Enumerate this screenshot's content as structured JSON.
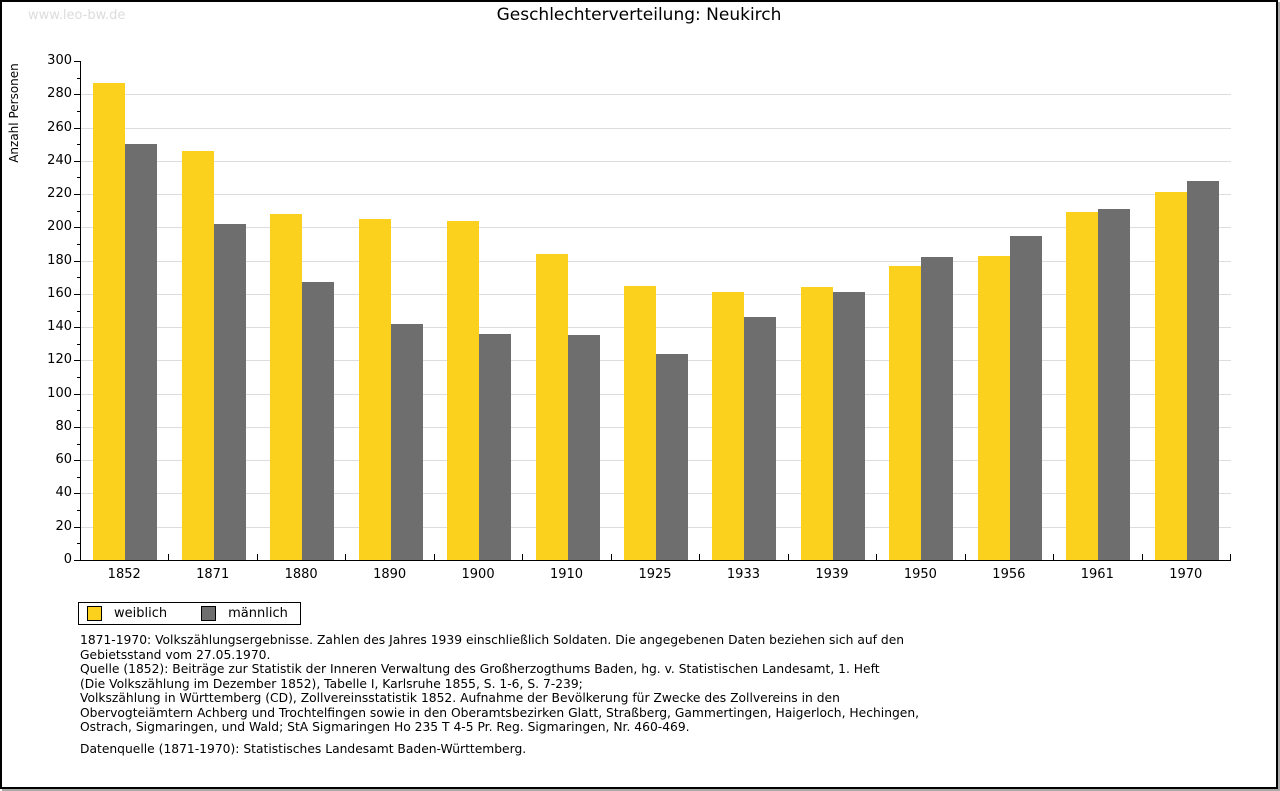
{
  "watermark": "www.leo-bw.de",
  "title": "Geschlechterverteilung: Neukirch",
  "chart_data": {
    "type": "bar",
    "title": "Geschlechterverteilung: Neukirch",
    "xlabel": "",
    "ylabel": "Anzahl Personen",
    "ylim": [
      0,
      300
    ],
    "y_major_step": 20,
    "y_minor_step": 10,
    "grid": true,
    "legend_position": "bottom-left",
    "categories": [
      "1852",
      "1871",
      "1880",
      "1890",
      "1900",
      "1910",
      "1925",
      "1933",
      "1939",
      "1950",
      "1956",
      "1961",
      "1970"
    ],
    "series": [
      {
        "name": "weiblich",
        "color": "#fcd11e",
        "values": [
          287,
          246,
          208,
          205,
          204,
          184,
          165,
          161,
          164,
          177,
          183,
          209,
          221
        ]
      },
      {
        "name": "männlich",
        "color": "#6e6e6e",
        "values": [
          250,
          202,
          167,
          142,
          136,
          135,
          124,
          146,
          161,
          182,
          195,
          211,
          228
        ]
      }
    ]
  },
  "footer": {
    "lines": [
      "1871-1970: Volkszählungsergebnisse. Zahlen des Jahres 1939 einschließlich Soldaten. Die angegebenen Daten beziehen sich auf den",
      "Gebietsstand vom 27.05.1970.",
      "Quelle (1852): Beiträge zur Statistik der Inneren Verwaltung des Großherzogthums Baden, hg. v. Statistischen Landesamt, 1. Heft",
      "(Die Volkszählung im Dezember 1852), Tabelle I, Karlsruhe 1855, S. 1-6, S. 7-239;",
      "Volkszählung in Württemberg (CD), Zollvereinsstatistik 1852. Aufnahme der Bevölkerung für Zwecke des Zollvereins in den",
      "Obervogteiämtern Achberg und Trochtelfingen sowie in den Oberamtsbezirken Glatt, Straßberg, Gammertingen, Haigerloch, Hechingen,",
      "Ostrach, Sigmaringen, und Wald; StA Sigmaringen Ho 235 T 4-5 Pr. Reg. Sigmaringen, Nr. 460-469."
    ],
    "datasource": "Datenquelle (1871-1970): Statistisches Landesamt Baden-Württemberg."
  }
}
